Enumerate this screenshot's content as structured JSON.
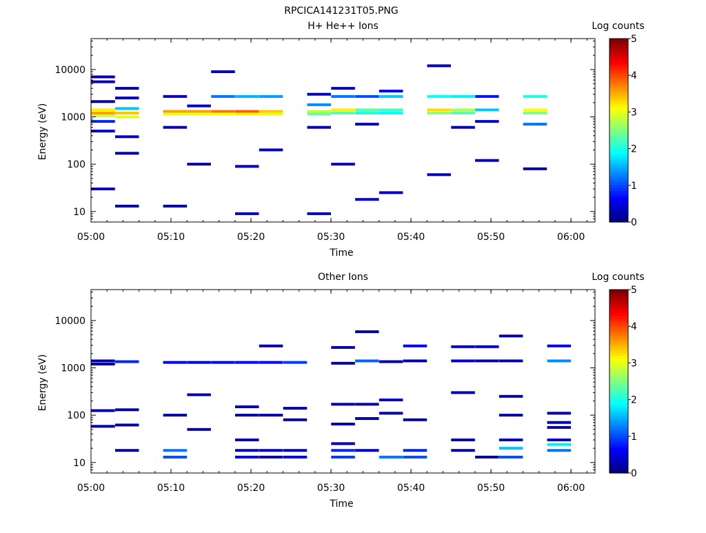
{
  "title": "RPCICA141231T05.PNG",
  "chart_data": [
    {
      "type": "heatmap",
      "title": "H+ He++ Ions",
      "xlabel": "Time",
      "ylabel": "Energy (eV)",
      "y_scale": "log",
      "ylim": [
        6,
        45000
      ],
      "xlim": [
        "05:00",
        "06:03"
      ],
      "x_ticks": [
        "05:00",
        "05:10",
        "05:20",
        "05:30",
        "05:40",
        "05:50",
        "06:00"
      ],
      "y_ticks": [
        "10",
        "100",
        "1000",
        "10000"
      ],
      "colorbar": {
        "label": "Log counts",
        "range": [
          0,
          5
        ],
        "ticks": [
          "0",
          "1",
          "2",
          "3",
          "4",
          "5"
        ]
      },
      "time_bins": [
        "05:01:30",
        "05:04:30",
        "05:07:30",
        "05:10:30",
        "05:13:30",
        "05:16:30",
        "05:19:30",
        "05:22:30",
        "05:25:30",
        "05:28:30",
        "05:31:30",
        "05:34:30",
        "05:37:30",
        "05:40:30",
        "05:43:30",
        "05:46:30",
        "05:49:30",
        "05:52:30",
        "05:55:30",
        "05:58:30",
        "06:01:30"
      ],
      "bins": [
        {
          "t": "05:01:30",
          "e": 2100,
          "v": 0.2
        },
        {
          "t": "05:01:30",
          "e": 1400,
          "v": 3.2
        },
        {
          "t": "05:01:30",
          "e": 1200,
          "v": 3.6
        },
        {
          "t": "05:01:30",
          "e": 1050,
          "v": 2.9
        },
        {
          "t": "05:01:30",
          "e": 5500,
          "v": 0.3
        },
        {
          "t": "05:01:30",
          "e": 7000,
          "v": 0.2
        },
        {
          "t": "05:01:30",
          "e": 800,
          "v": 0.8
        },
        {
          "t": "05:01:30",
          "e": 500,
          "v": 0.4
        },
        {
          "t": "05:01:30",
          "e": 30,
          "v": 0.3
        },
        {
          "t": "05:04:30",
          "e": 4000,
          "v": 0.2
        },
        {
          "t": "05:04:30",
          "e": 1500,
          "v": 1.6
        },
        {
          "t": "05:04:30",
          "e": 1200,
          "v": 3.4
        },
        {
          "t": "05:04:30",
          "e": 1000,
          "v": 3.0
        },
        {
          "t": "05:04:30",
          "e": 2500,
          "v": 0.3
        },
        {
          "t": "05:04:30",
          "e": 380,
          "v": 0.3
        },
        {
          "t": "05:04:30",
          "e": 170,
          "v": 0.2
        },
        {
          "t": "05:04:30",
          "e": 13,
          "v": 0.3
        },
        {
          "t": "05:10:30",
          "e": 1300,
          "v": 3.6
        },
        {
          "t": "05:10:30",
          "e": 1150,
          "v": 3.0
        },
        {
          "t": "05:10:30",
          "e": 2700,
          "v": 0.3
        },
        {
          "t": "05:10:30",
          "e": 600,
          "v": 0.3
        },
        {
          "t": "05:10:30",
          "e": 13,
          "v": 0.3
        },
        {
          "t": "05:13:30",
          "e": 1300,
          "v": 3.6
        },
        {
          "t": "05:13:30",
          "e": 1150,
          "v": 3.0
        },
        {
          "t": "05:13:30",
          "e": 1700,
          "v": 0.4
        },
        {
          "t": "05:13:30",
          "e": 100,
          "v": 0.2
        },
        {
          "t": "05:16:30",
          "e": 1300,
          "v": 3.8
        },
        {
          "t": "05:16:30",
          "e": 1150,
          "v": 3.1
        },
        {
          "t": "05:16:30",
          "e": 2700,
          "v": 1.2
        },
        {
          "t": "05:16:30",
          "e": 9000,
          "v": 0.3
        },
        {
          "t": "05:19:30",
          "e": 1300,
          "v": 3.9
        },
        {
          "t": "05:19:30",
          "e": 1150,
          "v": 3.2
        },
        {
          "t": "05:19:30",
          "e": 2700,
          "v": 1.5
        },
        {
          "t": "05:19:30",
          "e": 90,
          "v": 0.3
        },
        {
          "t": "05:19:30",
          "e": 9,
          "v": 0.3
        },
        {
          "t": "05:22:30",
          "e": 1300,
          "v": 3.4
        },
        {
          "t": "05:22:30",
          "e": 1150,
          "v": 3.0
        },
        {
          "t": "05:22:30",
          "e": 2700,
          "v": 1.4
        },
        {
          "t": "05:22:30",
          "e": 200,
          "v": 0.3
        },
        {
          "t": "05:28:30",
          "e": 1300,
          "v": 2.8
        },
        {
          "t": "05:28:30",
          "e": 1150,
          "v": 2.4
        },
        {
          "t": "05:28:30",
          "e": 1800,
          "v": 1.3
        },
        {
          "t": "05:28:30",
          "e": 3000,
          "v": 0.3
        },
        {
          "t": "05:28:30",
          "e": 600,
          "v": 0.3
        },
        {
          "t": "05:28:30",
          "e": 9,
          "v": 0.3
        },
        {
          "t": "05:31:30",
          "e": 1400,
          "v": 3.2
        },
        {
          "t": "05:31:30",
          "e": 1200,
          "v": 2.3
        },
        {
          "t": "05:31:30",
          "e": 2700,
          "v": 1.2
        },
        {
          "t": "05:31:30",
          "e": 4000,
          "v": 0.3
        },
        {
          "t": "05:31:30",
          "e": 100,
          "v": 0.3
        },
        {
          "t": "05:34:30",
          "e": 1400,
          "v": 2.3
        },
        {
          "t": "05:34:30",
          "e": 1200,
          "v": 2.0
        },
        {
          "t": "05:34:30",
          "e": 2700,
          "v": 1.0
        },
        {
          "t": "05:34:30",
          "e": 700,
          "v": 0.3
        },
        {
          "t": "05:34:30",
          "e": 18,
          "v": 0.5
        },
        {
          "t": "05:37:30",
          "e": 1400,
          "v": 2.2
        },
        {
          "t": "05:37:30",
          "e": 1200,
          "v": 1.9
        },
        {
          "t": "05:37:30",
          "e": 2700,
          "v": 1.6
        },
        {
          "t": "05:37:30",
          "e": 3500,
          "v": 0.6
        },
        {
          "t": "05:37:30",
          "e": 25,
          "v": 0.3
        },
        {
          "t": "05:43:30",
          "e": 1400,
          "v": 3.3
        },
        {
          "t": "05:43:30",
          "e": 1200,
          "v": 2.6
        },
        {
          "t": "05:43:30",
          "e": 2700,
          "v": 1.9
        },
        {
          "t": "05:43:30",
          "e": 12000,
          "v": 0.3
        },
        {
          "t": "05:43:30",
          "e": 60,
          "v": 0.3
        },
        {
          "t": "05:46:30",
          "e": 1400,
          "v": 2.7
        },
        {
          "t": "05:46:30",
          "e": 1200,
          "v": 2.3
        },
        {
          "t": "05:46:30",
          "e": 2700,
          "v": 1.8
        },
        {
          "t": "05:46:30",
          "e": 600,
          "v": 0.3
        },
        {
          "t": "05:49:30",
          "e": 1400,
          "v": 1.6
        },
        {
          "t": "05:49:30",
          "e": 2700,
          "v": 0.7
        },
        {
          "t": "05:49:30",
          "e": 800,
          "v": 0.4
        },
        {
          "t": "05:49:30",
          "e": 120,
          "v": 0.3
        },
        {
          "t": "05:55:30",
          "e": 1400,
          "v": 3.1
        },
        {
          "t": "05:55:30",
          "e": 1200,
          "v": 2.5
        },
        {
          "t": "05:55:30",
          "e": 2700,
          "v": 2.0
        },
        {
          "t": "05:55:30",
          "e": 700,
          "v": 1.2
        },
        {
          "t": "05:55:30",
          "e": 80,
          "v": 0.2
        }
      ]
    },
    {
      "type": "heatmap",
      "title": "Other Ions",
      "xlabel": "Time",
      "ylabel": "Energy (eV)",
      "y_scale": "log",
      "ylim": [
        6,
        45000
      ],
      "xlim": [
        "05:00",
        "06:03"
      ],
      "x_ticks": [
        "05:00",
        "05:10",
        "05:20",
        "05:30",
        "05:40",
        "05:50",
        "06:00"
      ],
      "y_ticks": [
        "10",
        "100",
        "1000",
        "10000"
      ],
      "colorbar": {
        "label": "Log counts",
        "range": [
          0,
          5
        ],
        "ticks": [
          "0",
          "1",
          "2",
          "3",
          "4",
          "5"
        ]
      },
      "bins": [
        {
          "t": "05:01:30",
          "e": 1400,
          "v": 0.2
        },
        {
          "t": "05:01:30",
          "e": 1200,
          "v": 0.2
        },
        {
          "t": "05:01:30",
          "e": 125,
          "v": 0.2
        },
        {
          "t": "05:01:30",
          "e": 58,
          "v": 0.2
        },
        {
          "t": "05:04:30",
          "e": 1350,
          "v": 0.8
        },
        {
          "t": "05:04:30",
          "e": 130,
          "v": 0.2
        },
        {
          "t": "05:04:30",
          "e": 62,
          "v": 0.2
        },
        {
          "t": "05:04:30",
          "e": 18,
          "v": 0.2
        },
        {
          "t": "05:10:30",
          "e": 1300,
          "v": 0.5
        },
        {
          "t": "05:10:30",
          "e": 100,
          "v": 0.2
        },
        {
          "t": "05:10:30",
          "e": 18,
          "v": 1.2
        },
        {
          "t": "05:10:30",
          "e": 13,
          "v": 1.0
        },
        {
          "t": "05:13:30",
          "e": 1300,
          "v": 0.4
        },
        {
          "t": "05:13:30",
          "e": 270,
          "v": 0.2
        },
        {
          "t": "05:13:30",
          "e": 50,
          "v": 0.2
        },
        {
          "t": "05:16:30",
          "e": 1300,
          "v": 0.5
        },
        {
          "t": "05:19:30",
          "e": 1300,
          "v": 0.6
        },
        {
          "t": "05:19:30",
          "e": 150,
          "v": 0.2
        },
        {
          "t": "05:19:30",
          "e": 100,
          "v": 0.2
        },
        {
          "t": "05:19:30",
          "e": 30,
          "v": 0.2
        },
        {
          "t": "05:19:30",
          "e": 18,
          "v": 0.3
        },
        {
          "t": "05:19:30",
          "e": 13,
          "v": 0.6
        },
        {
          "t": "05:22:30",
          "e": 1300,
          "v": 0.6
        },
        {
          "t": "05:22:30",
          "e": 2900,
          "v": 0.2
        },
        {
          "t": "05:22:30",
          "e": 100,
          "v": 0.2
        },
        {
          "t": "05:22:30",
          "e": 18,
          "v": 0.4
        },
        {
          "t": "05:22:30",
          "e": 13,
          "v": 0.3
        },
        {
          "t": "05:25:30",
          "e": 1300,
          "v": 0.9
        },
        {
          "t": "05:25:30",
          "e": 140,
          "v": 0.2
        },
        {
          "t": "05:25:30",
          "e": 80,
          "v": 0.2
        },
        {
          "t": "05:25:30",
          "e": 18,
          "v": 0.3
        },
        {
          "t": "05:25:30",
          "e": 13,
          "v": 0.6
        },
        {
          "t": "05:31:30",
          "e": 1250,
          "v": 0.2
        },
        {
          "t": "05:31:30",
          "e": 2700,
          "v": 0.2
        },
        {
          "t": "05:31:30",
          "e": 170,
          "v": 0.2
        },
        {
          "t": "05:31:30",
          "e": 65,
          "v": 0.2
        },
        {
          "t": "05:31:30",
          "e": 25,
          "v": 0.3
        },
        {
          "t": "05:31:30",
          "e": 18,
          "v": 0.8
        },
        {
          "t": "05:31:30",
          "e": 13,
          "v": 0.9
        },
        {
          "t": "05:34:30",
          "e": 1400,
          "v": 1.1
        },
        {
          "t": "05:34:30",
          "e": 5800,
          "v": 0.2
        },
        {
          "t": "05:34:30",
          "e": 170,
          "v": 0.2
        },
        {
          "t": "05:34:30",
          "e": 85,
          "v": 0.2
        },
        {
          "t": "05:34:30",
          "e": 18,
          "v": 0.4
        },
        {
          "t": "05:37:30",
          "e": 1350,
          "v": 0.2
        },
        {
          "t": "05:37:30",
          "e": 210,
          "v": 0.3
        },
        {
          "t": "05:37:30",
          "e": 110,
          "v": 0.2
        },
        {
          "t": "05:37:30",
          "e": 13,
          "v": 1.2
        },
        {
          "t": "05:40:30",
          "e": 2900,
          "v": 0.6
        },
        {
          "t": "05:40:30",
          "e": 1400,
          "v": 0.2
        },
        {
          "t": "05:40:30",
          "e": 80,
          "v": 0.2
        },
        {
          "t": "05:40:30",
          "e": 18,
          "v": 0.8
        },
        {
          "t": "05:40:30",
          "e": 13,
          "v": 1.0
        },
        {
          "t": "05:46:30",
          "e": 2800,
          "v": 0.4
        },
        {
          "t": "05:46:30",
          "e": 1400,
          "v": 0.4
        },
        {
          "t": "05:46:30",
          "e": 300,
          "v": 0.2
        },
        {
          "t": "05:46:30",
          "e": 30,
          "v": 0.2
        },
        {
          "t": "05:46:30",
          "e": 18,
          "v": 0.2
        },
        {
          "t": "05:49:30",
          "e": 2800,
          "v": 0.4
        },
        {
          "t": "05:49:30",
          "e": 1400,
          "v": 0.2
        },
        {
          "t": "05:49:30",
          "e": 13,
          "v": 0.2
        },
        {
          "t": "05:52:30",
          "e": 4700,
          "v": 0.2
        },
        {
          "t": "05:52:30",
          "e": 1400,
          "v": 0.2
        },
        {
          "t": "05:52:30",
          "e": 250,
          "v": 0.2
        },
        {
          "t": "05:52:30",
          "e": 100,
          "v": 0.2
        },
        {
          "t": "05:52:30",
          "e": 30,
          "v": 0.3
        },
        {
          "t": "05:52:30",
          "e": 20,
          "v": 1.6
        },
        {
          "t": "05:52:30",
          "e": 13,
          "v": 1.0
        },
        {
          "t": "05:58:30",
          "e": 2900,
          "v": 0.5
        },
        {
          "t": "05:58:30",
          "e": 1400,
          "v": 1.3
        },
        {
          "t": "05:58:30",
          "e": 110,
          "v": 0.2
        },
        {
          "t": "05:58:30",
          "e": 70,
          "v": 0.2
        },
        {
          "t": "05:58:30",
          "e": 55,
          "v": 0.2
        },
        {
          "t": "05:58:30",
          "e": 30,
          "v": 0.3
        },
        {
          "t": "05:58:30",
          "e": 24,
          "v": 1.8
        },
        {
          "t": "05:58:30",
          "e": 18,
          "v": 1.2
        }
      ]
    }
  ]
}
